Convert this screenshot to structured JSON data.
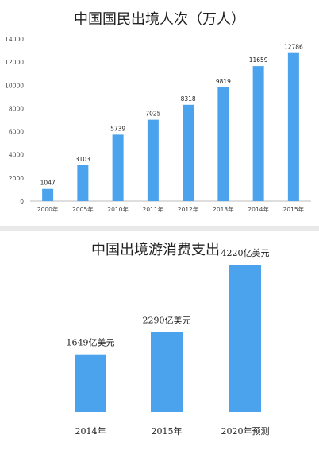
{
  "chart_data": [
    {
      "type": "bar",
      "title": "中国国民出境人次（万人）",
      "categories": [
        "2000年",
        "2005年",
        "2010年",
        "2011年",
        "2012年",
        "2013年",
        "2014年",
        "2015年"
      ],
      "values": [
        1047,
        3103,
        5739,
        7025,
        8318,
        9819,
        11659,
        12786
      ],
      "value_labels": [
        "1047",
        "3103",
        "5739",
        "7025",
        "8318",
        "9819",
        "11659",
        "12786"
      ],
      "ylim": [
        0,
        14000
      ],
      "yticks": [
        "0",
        "2000",
        "4000",
        "6000",
        "8000",
        "10000",
        "12000",
        "14000"
      ],
      "grid": false,
      "color": "#4aa3ec"
    },
    {
      "type": "bar",
      "title": "中国出境游消费支出",
      "categories": [
        "2014年",
        "2015年",
        "2020年预测"
      ],
      "values": [
        1649,
        2290,
        4220
      ],
      "value_labels": [
        "1649亿美元",
        "2290亿美元",
        "4220亿美元"
      ],
      "color": "#4aa3ec"
    }
  ]
}
